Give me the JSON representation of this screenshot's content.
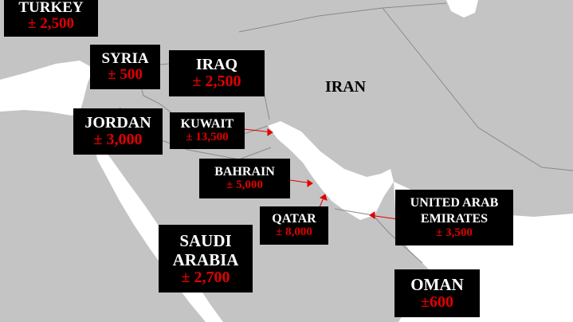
{
  "colors": {
    "sea": "#ffffff",
    "land": "#c4c4c4",
    "border": "#8a8a8a",
    "label_bg": "#000000",
    "name": "#ffffff",
    "value": "#e00000",
    "arrow": "#e00000"
  },
  "countries": {
    "turkey": {
      "name": "TURKEY",
      "value": "± 2,500"
    },
    "syria": {
      "name": "SYRIA",
      "value": "± 500"
    },
    "iraq": {
      "name": "IRAQ",
      "value": "± 2,500"
    },
    "iran": {
      "name": "IRAN"
    },
    "jordan": {
      "name": "JORDAN",
      "value": "± 3,000"
    },
    "kuwait": {
      "name": "KUWAIT",
      "value": "± 13,500"
    },
    "bahrain": {
      "name": "BAHRAIN",
      "value": "± 5,000"
    },
    "qatar": {
      "name": "QATAR",
      "value": "± 8,000"
    },
    "uae": {
      "name": "UNITED ARAB EMIRATES",
      "value": "± 3,500"
    },
    "saudi": {
      "name": "SAUDI ARABIA",
      "value": "± 2,700"
    },
    "oman": {
      "name": "OMAN",
      "value": "±600"
    }
  }
}
